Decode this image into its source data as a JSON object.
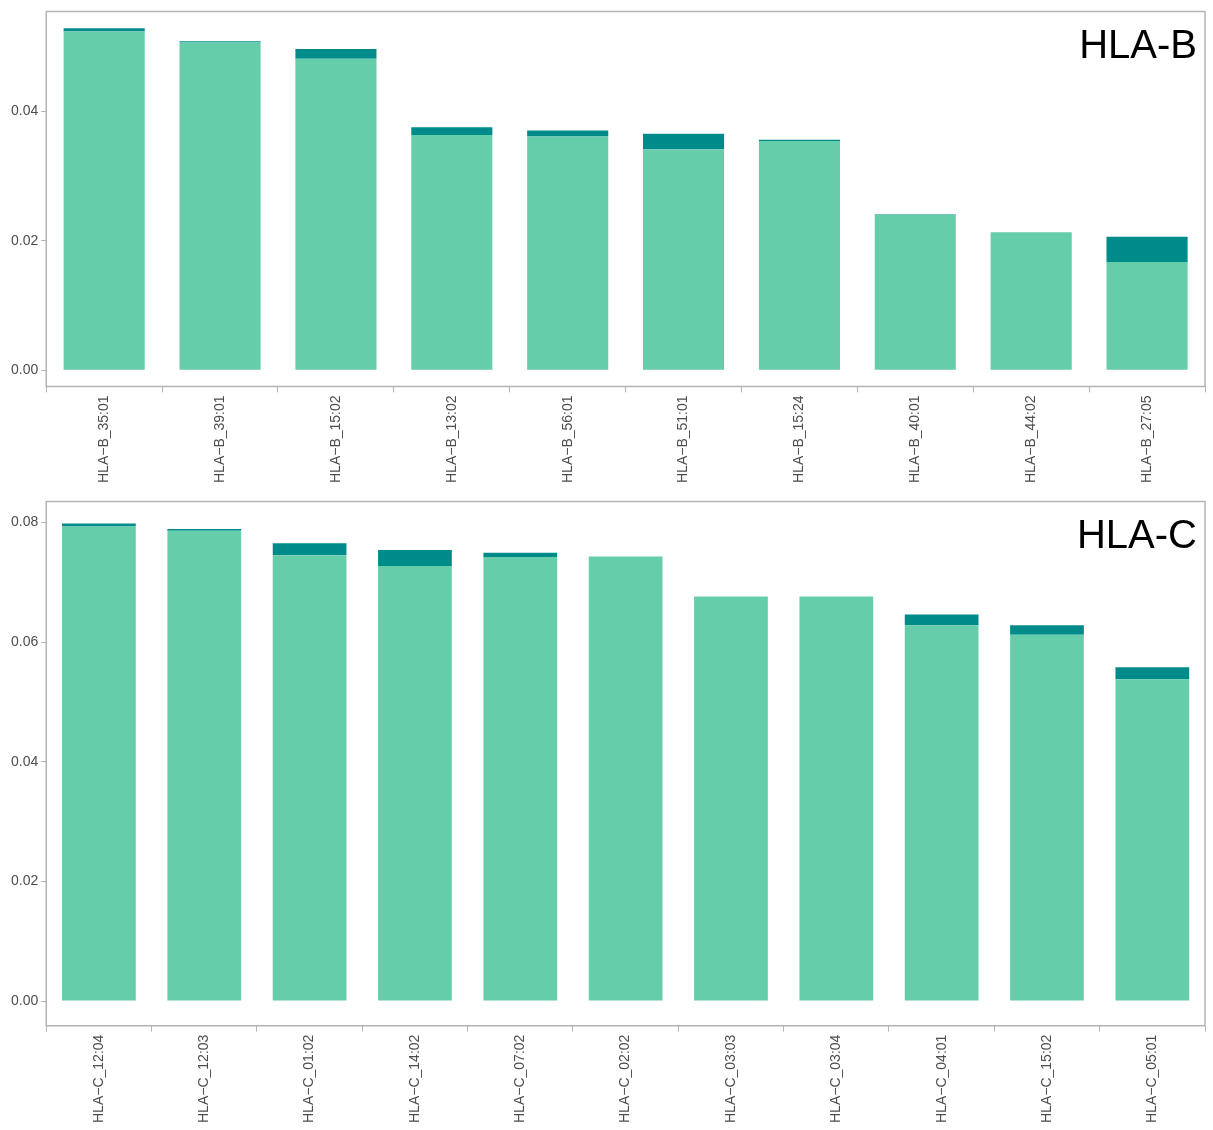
{
  "chart_data": [
    {
      "type": "bar",
      "title": "HLA-B",
      "categories": [
        "HLA−B_35:01",
        "HLA−B_39:01",
        "HLA−B_15:02",
        "HLA−B_13:02",
        "HLA−B_56:01",
        "HLA−B_51:01",
        "HLA−B_15:24",
        "HLA−B_40:01",
        "HLA−B_44:02",
        "HLA−B_27:05"
      ],
      "stacked": true,
      "series": [
        {
          "color": "#66cdaa",
          "values": [
            0.0523,
            0.0506,
            0.0481,
            0.0363,
            0.0361,
            0.0341,
            0.0354,
            0.024,
            0.0213,
            0.0167
          ]
        },
        {
          "color": "#008b8b",
          "values": [
            0.0005,
            0.0002,
            0.0015,
            0.0012,
            0.0009,
            0.0024,
            0.0002,
            0.0001,
            0,
            0.0039
          ]
        }
      ],
      "ylim": [
        -0.0025,
        0.0554
      ],
      "yticks": [
        {
          "value": 0,
          "label": "0.00"
        },
        {
          "value": 0.02,
          "label": "0.02"
        },
        {
          "value": 0.04,
          "label": "0.04"
        }
      ],
      "grid": false,
      "legend": false
    },
    {
      "type": "bar",
      "title": "HLA-C",
      "categories": [
        "HLA−C_12:04",
        "HLA−C_12:03",
        "HLA−C_01:02",
        "HLA−C_14:02",
        "HLA−C_07:02",
        "HLA−C_02:02",
        "HLA−C_03:03",
        "HLA−C_03:04",
        "HLA−C_04:01",
        "HLA−C_15:02",
        "HLA−C_05:01"
      ],
      "stacked": true,
      "series": [
        {
          "color": "#66cdaa",
          "values": [
            0.0793,
            0.0786,
            0.0745,
            0.0727,
            0.0742,
            0.0743,
            0.0676,
            0.0676,
            0.0628,
            0.0612,
            0.0538
          ]
        },
        {
          "color": "#008b8b",
          "values": [
            0.0005,
            0.0003,
            0.002,
            0.0027,
            0.0007,
            0,
            0,
            0,
            0.0018,
            0.0016,
            0.002
          ]
        }
      ],
      "ylim": [
        -0.0041,
        0.0835
      ],
      "yticks": [
        {
          "value": 0,
          "label": "0.00"
        },
        {
          "value": 0.02,
          "label": "0.02"
        },
        {
          "value": 0.04,
          "label": "0.04"
        },
        {
          "value": 0.06,
          "label": "0.06"
        },
        {
          "value": 0.08,
          "label": "0.08"
        }
      ],
      "grid": false,
      "legend": false
    }
  ]
}
